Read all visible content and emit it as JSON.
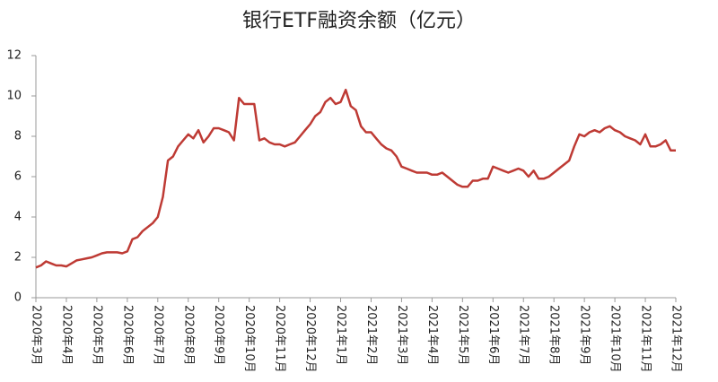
{
  "chart_data": {
    "type": "line",
    "title": "银行ETF融资余额（亿元）",
    "categories": [
      "2020年3月",
      null,
      null,
      null,
      null,
      null,
      "2020年4月",
      null,
      null,
      null,
      null,
      null,
      "2020年5月",
      null,
      null,
      null,
      null,
      null,
      "2020年6月",
      null,
      null,
      null,
      null,
      null,
      "2020年7月",
      null,
      null,
      null,
      null,
      null,
      "2020年8月",
      null,
      null,
      null,
      null,
      null,
      "2020年9月",
      null,
      null,
      null,
      null,
      null,
      "2020年10月",
      null,
      null,
      null,
      null,
      null,
      "2020年11月",
      null,
      null,
      null,
      null,
      null,
      "2020年12月",
      null,
      null,
      null,
      null,
      null,
      "2021年1月",
      null,
      null,
      null,
      null,
      null,
      "2021年2月",
      null,
      null,
      null,
      null,
      null,
      "2021年3月",
      null,
      null,
      null,
      null,
      null,
      "2021年4月",
      null,
      null,
      null,
      null,
      null,
      "2021年5月",
      null,
      null,
      null,
      null,
      null,
      "2021年6月",
      null,
      null,
      null,
      null,
      null,
      "2021年7月",
      null,
      null,
      null,
      null,
      null,
      "2021年8月",
      null,
      null,
      null,
      null,
      null,
      "2021年9月",
      null,
      null,
      null,
      null,
      null,
      "2021年10月",
      null,
      null,
      null,
      null,
      null,
      "2021年11月",
      null,
      null,
      null,
      null,
      null,
      "2021年12月"
    ],
    "series": [
      {
        "name": "银行ETF融资余额",
        "color": "#be3a34",
        "values": [
          1.5,
          1.6,
          1.8,
          1.7,
          1.6,
          1.6,
          1.55,
          1.7,
          1.85,
          1.9,
          1.95,
          2.0,
          2.1,
          2.2,
          2.25,
          2.25,
          2.25,
          2.2,
          2.3,
          2.9,
          3.0,
          3.3,
          3.5,
          3.7,
          4.0,
          5.0,
          6.8,
          7.0,
          7.5,
          7.8,
          8.1,
          7.9,
          8.3,
          7.7,
          8.0,
          8.4,
          8.4,
          8.3,
          8.2,
          7.8,
          9.9,
          9.6,
          9.6,
          9.6,
          7.8,
          7.9,
          7.7,
          7.6,
          7.6,
          7.5,
          7.6,
          7.7,
          8.0,
          8.3,
          8.6,
          9.0,
          9.2,
          9.7,
          9.9,
          9.6,
          9.7,
          10.3,
          9.5,
          9.3,
          8.5,
          8.2,
          8.2,
          7.9,
          7.6,
          7.4,
          7.3,
          7.0,
          6.5,
          6.4,
          6.3,
          6.2,
          6.2,
          6.2,
          6.1,
          6.1,
          6.2,
          6.0,
          5.8,
          5.6,
          5.5,
          5.5,
          5.8,
          5.8,
          5.9,
          5.9,
          6.5,
          6.4,
          6.3,
          6.2,
          6.3,
          6.4,
          6.3,
          6.0,
          6.3,
          5.9,
          5.9,
          6.0,
          6.2,
          6.4,
          6.6,
          6.8,
          7.5,
          8.1,
          8.0,
          8.2,
          8.3,
          8.2,
          8.4,
          8.5,
          8.3,
          8.2,
          8.0,
          7.9,
          7.8,
          7.6,
          8.1,
          7.5,
          7.5,
          7.6,
          7.8,
          7.3,
          7.3
        ]
      }
    ],
    "ylim": [
      0,
      12
    ],
    "yticks": [
      0,
      2,
      4,
      6,
      8,
      10,
      12
    ]
  }
}
